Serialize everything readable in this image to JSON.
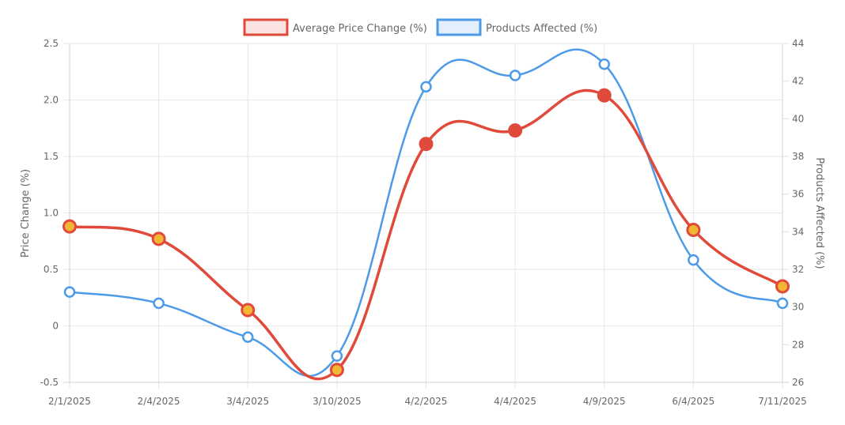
{
  "chart_data": {
    "type": "line",
    "title": "",
    "categories": [
      "2/1/2025",
      "2/4/2025",
      "3/4/2025",
      "3/10/2025",
      "4/2/2025",
      "4/4/2025",
      "4/9/2025",
      "6/4/2025",
      "7/11/2025"
    ],
    "series": [
      {
        "name": "Average Price Change (%)",
        "axis": "left",
        "color": "#e04a3b",
        "point_fill": "#f2b632",
        "values": [
          0.88,
          0.77,
          0.14,
          -0.39,
          1.61,
          1.73,
          2.04,
          0.85,
          0.35
        ]
      },
      {
        "name": "Products Affected (%)",
        "axis": "right",
        "color": "#4d9be8",
        "point_fill": "#ffffff",
        "values": [
          30.8,
          30.2,
          28.4,
          27.4,
          41.7,
          42.3,
          42.9,
          32.5,
          30.2
        ]
      }
    ],
    "xlabel": "",
    "ylabel": "Price Change (%)",
    "y2label": "Products Affected (%)",
    "ylim": [
      -0.5,
      2.5
    ],
    "y2lim": [
      26,
      44
    ],
    "yticks": [
      "2.5",
      "2.0",
      "1.5",
      "1.0",
      "0.5",
      "0",
      "-0.5"
    ],
    "y2ticks": [
      "44",
      "42",
      "40",
      "38",
      "36",
      "34",
      "32",
      "30",
      "28",
      "26"
    ],
    "grid": true,
    "legend_position": "top"
  },
  "legend": {
    "items": [
      {
        "label": "Average Price Change (%)",
        "border": "#e04a3b",
        "fill": "#fbe3e1"
      },
      {
        "label": "Products Affected (%)",
        "border": "#4d9be8",
        "fill": "#e3effc"
      }
    ]
  },
  "axes": {
    "left_title": "Price Change (%)",
    "right_title": "Products Affected (%)"
  }
}
